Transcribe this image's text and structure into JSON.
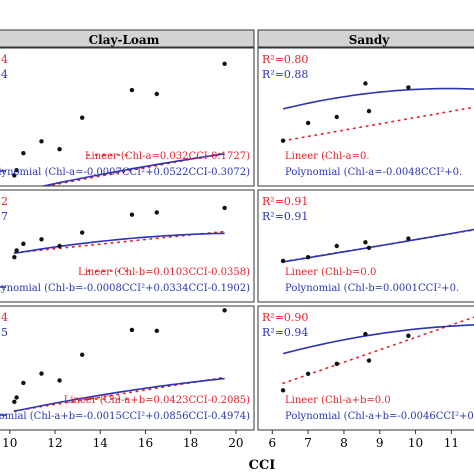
{
  "figure": {
    "xlabel": "CCI",
    "colors": {
      "strip": "#d3d3d3",
      "frame": "#333333",
      "points": "#111111",
      "linear": "#e8202a",
      "poly": "#2a35b3"
    }
  },
  "chart_data": [
    {
      "type": "scatter",
      "panel": "Clay-Loam / Chl-a",
      "column_title": "Clay-Loam",
      "r2_linear_text": "4",
      "r2_poly_text": "4",
      "x": [
        10.2,
        10.3,
        10.6,
        11.4,
        12.2,
        13.2,
        15.4,
        16.5,
        19.5
      ],
      "y": [
        0.28,
        0.32,
        0.45,
        0.54,
        0.48,
        0.72,
        0.93,
        0.9,
        1.13
      ],
      "linear_fit": {
        "label": "Lineer (Chl-a=0.032CCI-0.1727)",
        "slope": 0.032,
        "intercept": -0.1727
      },
      "poly_fit": {
        "label": "Polynomial (Chl-a=-0.0007CCI²+0.0522CCI-0.3072)",
        "a": -0.0007,
        "b": 0.0522,
        "c": -0.3072
      },
      "ylim": [
        0.2,
        1.25
      ]
    },
    {
      "type": "scatter",
      "panel": "Sandy / Chl-a",
      "column_title": "Sandy",
      "r2_linear_text": "R²=0.80",
      "r2_poly_text": "R²=0.88",
      "x": [
        6.3,
        7.0,
        7.8,
        8.6,
        8.7,
        9.8,
        11.8
      ],
      "y": [
        0.03,
        0.12,
        0.15,
        0.32,
        0.18,
        0.3,
        0.36
      ],
      "linear_fit": {
        "label": "Lineer (Chl-a=0.",
        "slope": 0.032,
        "intercept": -0.1727
      },
      "poly_fit": {
        "label": "Polynomial (Chl-a=-0.0048CCI²+0.",
        "a": -0.0048,
        "b": 0.105,
        "c": -0.28
      },
      "ylim": [
        -0.2,
        0.5
      ]
    },
    {
      "type": "scatter",
      "panel": "Clay-Loam / Chl-b",
      "r2_linear_text": "2",
      "r2_poly_text": "7",
      "x": [
        10.2,
        10.3,
        10.6,
        11.4,
        12.2,
        13.2,
        15.4,
        16.5,
        19.5
      ],
      "y": [
        0.05,
        0.08,
        0.11,
        0.13,
        0.1,
        0.16,
        0.24,
        0.25,
        0.27
      ],
      "linear_fit": {
        "label": "Lineer (Chl-b=0.0103CCI-0.0358)",
        "slope": 0.0103,
        "intercept": -0.0358
      },
      "poly_fit": {
        "label": "Polynomial (Chl-b=-0.0008CCI²+0.0334CCI-0.1902)",
        "a": -0.0008,
        "b": 0.0334,
        "c": -0.1902
      },
      "ylim": [
        -0.15,
        0.35
      ]
    },
    {
      "type": "scatter",
      "panel": "Sandy / Chl-b",
      "r2_linear_text": "R²=0.91",
      "r2_poly_text": "R²=0.91",
      "x": [
        6.3,
        7.0,
        7.8,
        8.6,
        8.7,
        9.8,
        11.8
      ],
      "y": [
        0.01,
        0.02,
        0.05,
        0.06,
        0.045,
        0.07,
        0.095
      ],
      "linear_fit": {
        "label": "Lineer (Chl-b=0.0",
        "slope": 0.0159,
        "intercept": -0.092
      },
      "poly_fit": {
        "label": "Polynomial (Chl-b=0.0001CCI²+0.",
        "a": 0.0001,
        "b": 0.0145,
        "c": -0.088
      },
      "ylim": [
        -0.1,
        0.2
      ]
    },
    {
      "type": "scatter",
      "panel": "Clay-Loam / Chl-a+b",
      "r2_linear_text": "4",
      "r2_poly_text": "5",
      "x": [
        10.2,
        10.3,
        10.6,
        11.4,
        12.2,
        13.2,
        15.4,
        16.5,
        19.5
      ],
      "y": [
        0.33,
        0.38,
        0.55,
        0.66,
        0.58,
        0.88,
        1.17,
        1.16,
        1.4
      ],
      "linear_fit": {
        "label": "Lineer (Chl-a+b=0.0423CCI-0.2085)",
        "slope": 0.0423,
        "intercept": -0.2085
      },
      "poly_fit": {
        "label": "Polynomial (Chl-a+b=-0.0015CCI²+0.0856CCI-0.4974)",
        "a": -0.0015,
        "b": 0.0856,
        "c": -0.4974
      },
      "ylim": [
        0.0,
        1.45
      ]
    },
    {
      "type": "scatter",
      "panel": "Sandy / Chl-a+b",
      "r2_linear_text": "R²=0.90",
      "r2_poly_text": "R²=0.94",
      "x": [
        6.3,
        7.0,
        7.8,
        8.6,
        8.7,
        9.8,
        11.8
      ],
      "y": [
        0.04,
        0.14,
        0.2,
        0.38,
        0.22,
        0.37,
        0.45
      ],
      "linear_fit": {
        "label": "Lineer (Chl-a+b=0.0",
        "slope": 0.075,
        "intercept": -0.39
      },
      "poly_fit": {
        "label": "Polynomial (Chl-a+b=-0.0046CCI²+0.",
        "a": -0.0046,
        "b": 0.115,
        "c": -0.28
      },
      "ylim": [
        -0.2,
        0.55
      ]
    }
  ],
  "x_axes": [
    {
      "ticks": [
        10,
        12,
        14,
        16,
        18,
        20
      ],
      "xlim": [
        9.3,
        20.8
      ]
    },
    {
      "ticks": [
        6,
        7,
        8,
        9,
        10,
        11
      ],
      "xlim": [
        5.6,
        11.8
      ]
    }
  ]
}
